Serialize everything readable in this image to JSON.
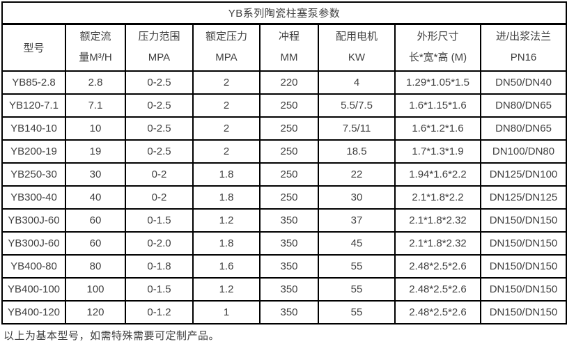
{
  "table": {
    "title": "YB系列陶瓷柱塞泵参数",
    "columns": [
      {
        "line1": "型号",
        "line2": ""
      },
      {
        "line1": "额定流",
        "line2": "量M³/H"
      },
      {
        "line1": "压力范围",
        "line2": "MPA"
      },
      {
        "line1": "额定压力",
        "line2": "MPA"
      },
      {
        "line1": "冲程",
        "line2": "MM"
      },
      {
        "line1": "配用电机",
        "line2": "KW"
      },
      {
        "line1": "外形尺寸",
        "line2": "长*宽*高 (M)"
      },
      {
        "line1": "进/出浆法兰",
        "line2": "PN16"
      }
    ],
    "rows": [
      [
        "YB85-2.8",
        "2.8",
        "0-2.5",
        "2",
        "220",
        "4",
        "1.29*1.05*1.5",
        "DN50/DN40"
      ],
      [
        "YB120-7.1",
        "7.1",
        "0-2.5",
        "2",
        "250",
        "5.5/7.5",
        "1.6*1.15*1.6",
        "DN80/DN65"
      ],
      [
        "YB140-10",
        "10",
        "0-2.5",
        "2",
        "250",
        "7.5/11",
        "1.6*1.2*1.6",
        "DN80/DN65"
      ],
      [
        "YB200-19",
        "19",
        "0-2.5",
        "2",
        "250",
        "18.5",
        "1.7*1.3*1.9",
        "DN100/DN80"
      ],
      [
        "YB250-30",
        "30",
        "0-2",
        "1.8",
        "250",
        "22",
        "1.94*1.6*2.2",
        "DN125/DN100"
      ],
      [
        "YB300-40",
        "40",
        "0-2",
        "1.8",
        "250",
        "30",
        "2.1*1.8*2.2",
        "DN125/DN125"
      ],
      [
        "YB300J-60",
        "60",
        "0-1.5",
        "1.2",
        "350",
        "37",
        "2.1*1.8*2.32",
        "DN150/DN150"
      ],
      [
        "YB300J-60",
        "60",
        "0-2.0",
        "1.8",
        "350",
        "45",
        "2.1*1.8*2.32",
        "DN150/DN150"
      ],
      [
        "YB400-80",
        "80",
        "0-1.8",
        "1.6",
        "350",
        "55",
        "2.48*2.5*2.6",
        "DN150/DN150"
      ],
      [
        "YB400-100",
        "100",
        "0-1.5",
        "1.2",
        "350",
        "55",
        "2.48*2.5*2.6",
        "DN150/DN150"
      ],
      [
        "YB400-120",
        "120",
        "0-1.2",
        "1",
        "350",
        "55",
        "2.48*2.5*2.6",
        "DN150/DN150"
      ]
    ],
    "footer_note": "以上为基本型号，如需特殊需要可定制产品。"
  },
  "colors": {
    "border": "#000000",
    "text": "#404040",
    "background": "#ffffff"
  }
}
